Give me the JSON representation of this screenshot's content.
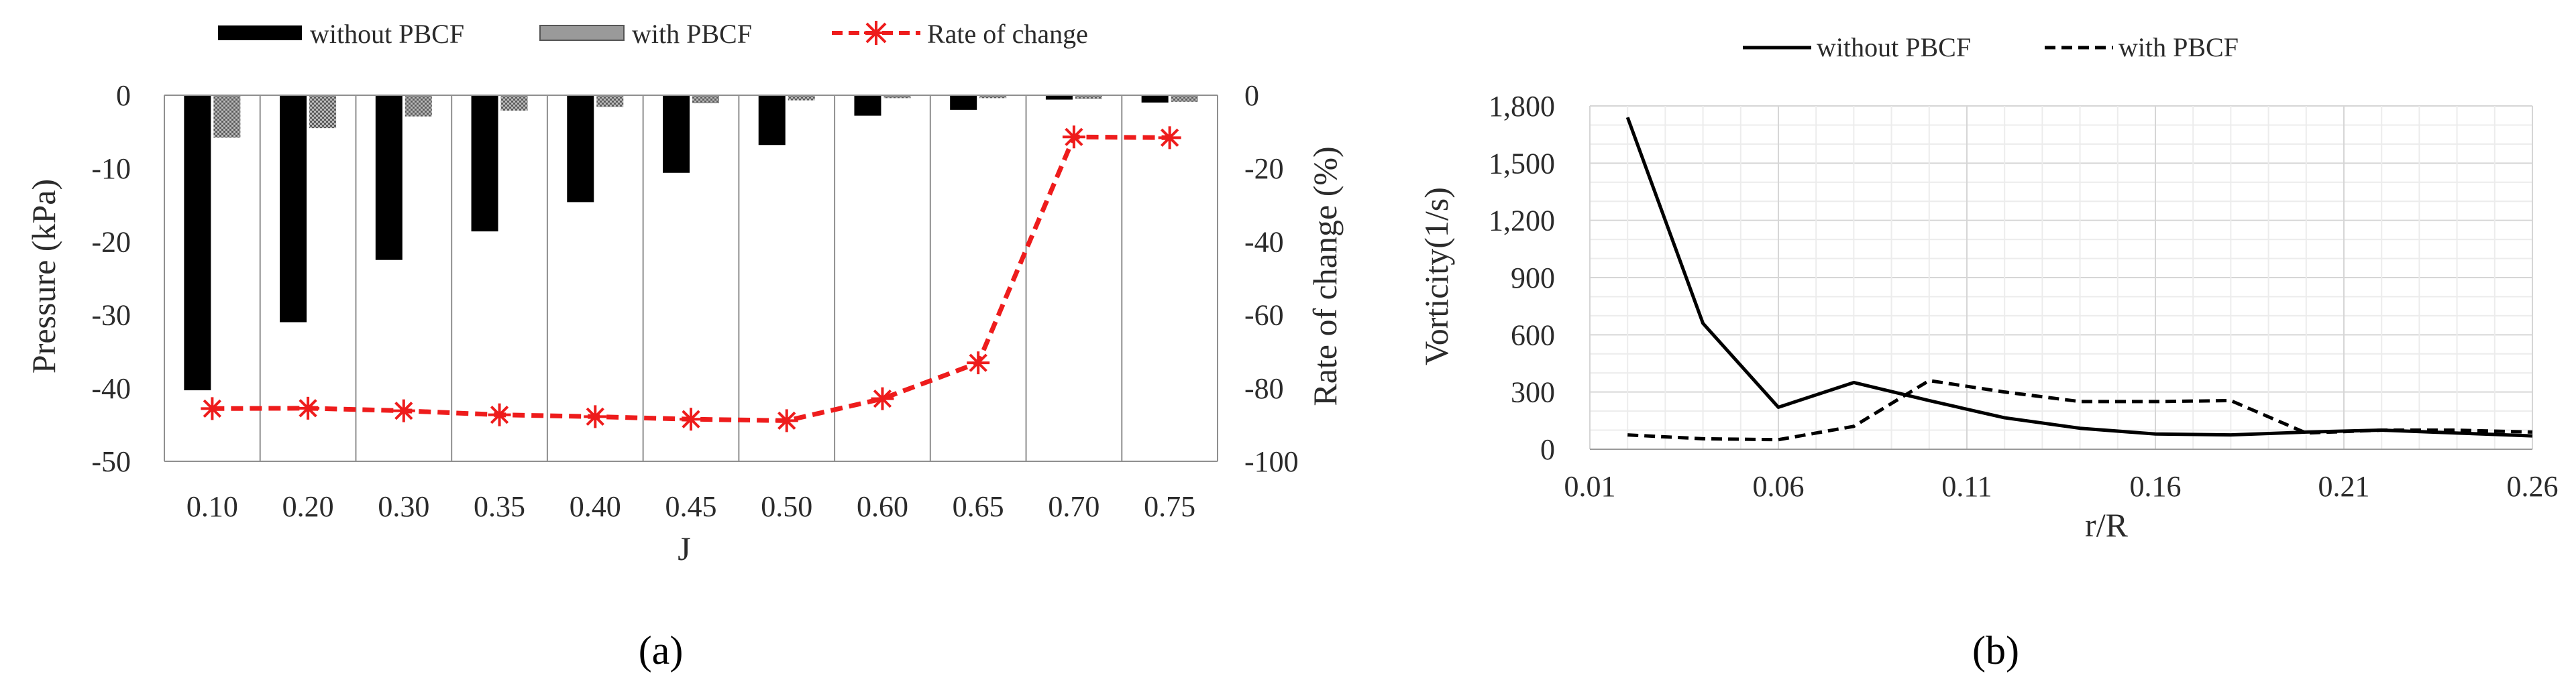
{
  "chart_data": [
    {
      "type": "bar",
      "panel_label": "(a)",
      "categories": [
        "0.10",
        "0.20",
        "0.30",
        "0.35",
        "0.40",
        "0.45",
        "0.50",
        "0.60",
        "0.65",
        "0.70",
        "0.75"
      ],
      "xlabel": "J",
      "ylabel": "Pressure (kPa)",
      "y2label": "Rate of change (%)",
      "ylim": [
        -50,
        0
      ],
      "y2lim": [
        -100,
        0
      ],
      "yticks": [
        "0",
        "-10",
        "-20",
        "-30",
        "-40",
        "-50"
      ],
      "y2ticks": [
        "0",
        "-20",
        "-40",
        "-60",
        "-80",
        "-100"
      ],
      "grid": "vertical",
      "legend_position": "top",
      "series": [
        {
          "name": "without PBCF",
          "kind": "bar",
          "axis": "left",
          "color": "#000000",
          "values": [
            -40.3,
            -31.0,
            -22.5,
            -18.6,
            -14.6,
            -10.6,
            -6.8,
            -2.8,
            -2.0,
            -0.6,
            -1.0
          ]
        },
        {
          "name": "with PBCF",
          "kind": "bar",
          "axis": "left",
          "color": "#8c8c8c",
          "values": [
            -5.8,
            -4.5,
            -2.9,
            -2.1,
            -1.6,
            -1.1,
            -0.7,
            -0.4,
            -0.4,
            -0.5,
            -0.9
          ]
        },
        {
          "name": "Rate of change",
          "kind": "line",
          "axis": "right",
          "color": "#ee1c1c",
          "values": [
            -85.6,
            -85.5,
            -86.2,
            -87.3,
            -87.8,
            -88.5,
            -88.9,
            -82.9,
            -73.1,
            -11.4,
            -11.6
          ]
        }
      ],
      "axis_labels": {
        "x": "J",
        "y": "Pressure (kPa)",
        "y2": "Rate of change (%)"
      }
    },
    {
      "type": "line",
      "panel_label": "(b)",
      "xlabel": "r/R",
      "ylabel": "Vorticity(1/s)",
      "xlim": [
        0.01,
        0.26
      ],
      "ylim": [
        0,
        1800
      ],
      "xticks": [
        "0.01",
        "0.06",
        "0.11",
        "0.16",
        "0.21",
        "0.26"
      ],
      "yticks": [
        "0",
        "300",
        "600",
        "900",
        "1,200",
        "1,500",
        "1,800"
      ],
      "grid": "both",
      "legend_position": "top",
      "series": [
        {
          "name": "without PBCF",
          "style": "solid",
          "color": "#000000",
          "x": [
            0.02,
            0.04,
            0.06,
            0.08,
            0.1,
            0.12,
            0.14,
            0.16,
            0.18,
            0.2,
            0.22,
            0.24,
            0.26
          ],
          "y": [
            1740,
            660,
            220,
            350,
            255,
            165,
            110,
            80,
            75,
            90,
            100,
            85,
            70
          ]
        },
        {
          "name": "with PBCF",
          "style": "dashed",
          "color": "#000000",
          "x": [
            0.02,
            0.04,
            0.06,
            0.08,
            0.1,
            0.12,
            0.14,
            0.16,
            0.18,
            0.2,
            0.22,
            0.24,
            0.26
          ],
          "y": [
            75,
            55,
            50,
            120,
            360,
            300,
            250,
            250,
            255,
            85,
            100,
            100,
            90
          ]
        }
      ]
    }
  ]
}
